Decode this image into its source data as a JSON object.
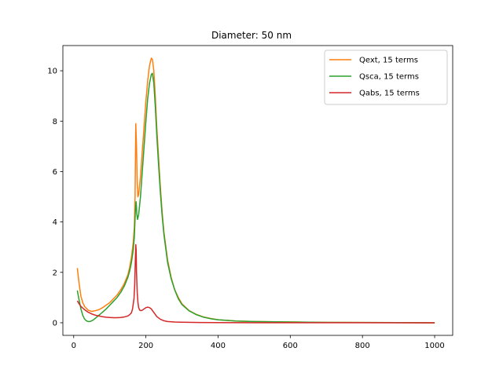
{
  "chart_data": {
    "type": "line",
    "title": "Diameter: 50 nm",
    "xlabel": "",
    "ylabel": "",
    "xlim": [
      -30,
      1050
    ],
    "ylim": [
      -0.5,
      11
    ],
    "xticks": [
      0,
      200,
      400,
      600,
      800,
      1000
    ],
    "yticks": [
      0,
      2,
      4,
      6,
      8,
      10
    ],
    "grid": false,
    "legend": "top-right",
    "colors": {
      "Qext": "#ff7f0e",
      "Qsca": "#2ca02c",
      "Qabs": "#d62728"
    },
    "series": [
      {
        "name": "Qext, 15 terms",
        "color": "#ff7f0e",
        "points": [
          [
            10,
            2.17
          ],
          [
            15,
            1.55
          ],
          [
            20,
            1.05
          ],
          [
            25,
            0.8
          ],
          [
            30,
            0.65
          ],
          [
            40,
            0.5
          ],
          [
            50,
            0.45
          ],
          [
            60,
            0.48
          ],
          [
            70,
            0.52
          ],
          [
            80,
            0.6
          ],
          [
            90,
            0.7
          ],
          [
            100,
            0.8
          ],
          [
            110,
            0.95
          ],
          [
            120,
            1.1
          ],
          [
            130,
            1.3
          ],
          [
            140,
            1.55
          ],
          [
            150,
            1.9
          ],
          [
            155,
            2.2
          ],
          [
            160,
            2.6
          ],
          [
            165,
            3.2
          ],
          [
            168,
            3.8
          ],
          [
            170,
            5.0
          ],
          [
            172,
            7.9
          ],
          [
            174,
            7.0
          ],
          [
            176,
            5.5
          ],
          [
            178,
            5.0
          ],
          [
            180,
            5.1
          ],
          [
            185,
            5.8
          ],
          [
            190,
            6.8
          ],
          [
            195,
            7.8
          ],
          [
            200,
            8.8
          ],
          [
            205,
            9.6
          ],
          [
            210,
            10.2
          ],
          [
            215,
            10.5
          ],
          [
            218,
            10.45
          ],
          [
            222,
            10.0
          ],
          [
            226,
            9.0
          ],
          [
            230,
            7.8
          ],
          [
            235,
            6.6
          ],
          [
            240,
            5.4
          ],
          [
            245,
            4.4
          ],
          [
            250,
            3.6
          ],
          [
            260,
            2.5
          ],
          [
            270,
            1.8
          ],
          [
            280,
            1.3
          ],
          [
            290,
            1.0
          ],
          [
            300,
            0.75
          ],
          [
            320,
            0.48
          ],
          [
            340,
            0.33
          ],
          [
            360,
            0.23
          ],
          [
            380,
            0.17
          ],
          [
            400,
            0.12
          ],
          [
            450,
            0.07
          ],
          [
            500,
            0.05
          ],
          [
            600,
            0.03
          ],
          [
            700,
            0.015
          ],
          [
            800,
            0.01
          ],
          [
            900,
            0.005
          ],
          [
            1000,
            0.0
          ]
        ]
      },
      {
        "name": "Qsca, 15 terms",
        "color": "#2ca02c",
        "points": [
          [
            10,
            1.28
          ],
          [
            15,
            0.9
          ],
          [
            20,
            0.55
          ],
          [
            25,
            0.3
          ],
          [
            30,
            0.15
          ],
          [
            35,
            0.08
          ],
          [
            40,
            0.05
          ],
          [
            45,
            0.05
          ],
          [
            50,
            0.08
          ],
          [
            55,
            0.12
          ],
          [
            60,
            0.18
          ],
          [
            70,
            0.3
          ],
          [
            80,
            0.42
          ],
          [
            90,
            0.55
          ],
          [
            100,
            0.7
          ],
          [
            110,
            0.85
          ],
          [
            120,
            1.0
          ],
          [
            130,
            1.2
          ],
          [
            140,
            1.45
          ],
          [
            150,
            1.8
          ],
          [
            155,
            2.05
          ],
          [
            160,
            2.4
          ],
          [
            165,
            2.9
          ],
          [
            168,
            3.4
          ],
          [
            171,
            4.5
          ],
          [
            173,
            4.8
          ],
          [
            175,
            4.3
          ],
          [
            177,
            4.1
          ],
          [
            180,
            4.3
          ],
          [
            185,
            5.0
          ],
          [
            190,
            6.0
          ],
          [
            195,
            7.0
          ],
          [
            200,
            8.0
          ],
          [
            205,
            8.9
          ],
          [
            210,
            9.5
          ],
          [
            215,
            9.85
          ],
          [
            218,
            9.9
          ],
          [
            222,
            9.5
          ],
          [
            226,
            8.6
          ],
          [
            230,
            7.5
          ],
          [
            235,
            6.3
          ],
          [
            240,
            5.2
          ],
          [
            245,
            4.25
          ],
          [
            250,
            3.5
          ],
          [
            260,
            2.4
          ],
          [
            270,
            1.75
          ],
          [
            280,
            1.3
          ],
          [
            290,
            0.95
          ],
          [
            300,
            0.72
          ],
          [
            320,
            0.47
          ],
          [
            340,
            0.32
          ],
          [
            360,
            0.22
          ],
          [
            380,
            0.16
          ],
          [
            400,
            0.12
          ],
          [
            450,
            0.07
          ],
          [
            500,
            0.05
          ],
          [
            600,
            0.03
          ],
          [
            700,
            0.015
          ],
          [
            800,
            0.01
          ],
          [
            900,
            0.005
          ],
          [
            1000,
            0.0
          ]
        ]
      },
      {
        "name": "Qabs, 15 terms",
        "color": "#d62728",
        "points": [
          [
            10,
            0.87
          ],
          [
            15,
            0.75
          ],
          [
            20,
            0.65
          ],
          [
            30,
            0.52
          ],
          [
            40,
            0.42
          ],
          [
            50,
            0.35
          ],
          [
            60,
            0.3
          ],
          [
            70,
            0.27
          ],
          [
            80,
            0.24
          ],
          [
            90,
            0.22
          ],
          [
            100,
            0.21
          ],
          [
            110,
            0.2
          ],
          [
            120,
            0.2
          ],
          [
            130,
            0.21
          ],
          [
            140,
            0.23
          ],
          [
            150,
            0.27
          ],
          [
            155,
            0.32
          ],
          [
            160,
            0.4
          ],
          [
            163,
            0.55
          ],
          [
            165,
            0.75
          ],
          [
            167,
            0.95
          ],
          [
            169,
            1.5
          ],
          [
            171,
            2.6
          ],
          [
            172,
            3.1
          ],
          [
            173,
            2.9
          ],
          [
            174,
            2.0
          ],
          [
            176,
            1.2
          ],
          [
            178,
            0.8
          ],
          [
            180,
            0.6
          ],
          [
            183,
            0.5
          ],
          [
            186,
            0.48
          ],
          [
            190,
            0.5
          ],
          [
            195,
            0.55
          ],
          [
            200,
            0.6
          ],
          [
            205,
            0.62
          ],
          [
            210,
            0.6
          ],
          [
            215,
            0.55
          ],
          [
            220,
            0.45
          ],
          [
            225,
            0.35
          ],
          [
            230,
            0.25
          ],
          [
            240,
            0.14
          ],
          [
            250,
            0.08
          ],
          [
            260,
            0.05
          ],
          [
            280,
            0.03
          ],
          [
            300,
            0.02
          ],
          [
            350,
            0.01
          ],
          [
            400,
            0.005
          ],
          [
            500,
            0.003
          ],
          [
            600,
            0.002
          ],
          [
            800,
            0.001
          ],
          [
            1000,
            0.0
          ]
        ]
      }
    ]
  }
}
